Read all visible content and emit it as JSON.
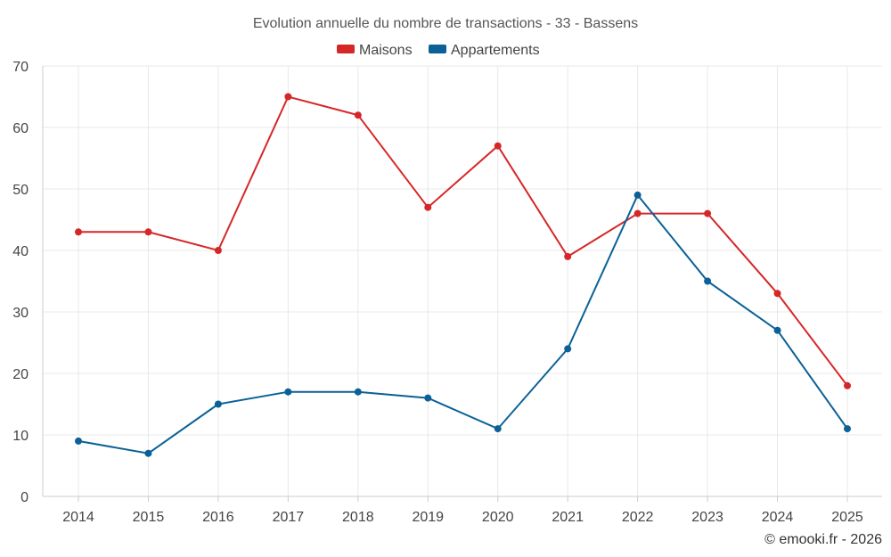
{
  "chart_data": {
    "type": "line",
    "title": "Evolution annuelle du nombre de transactions - 33 - Bassens",
    "categories": [
      "2014",
      "2015",
      "2016",
      "2017",
      "2018",
      "2019",
      "2020",
      "2021",
      "2022",
      "2023",
      "2024",
      "2025"
    ],
    "series": [
      {
        "name": "Maisons",
        "color": "#d62728",
        "values": [
          43,
          43,
          40,
          65,
          62,
          47,
          57,
          39,
          46,
          46,
          33,
          18
        ]
      },
      {
        "name": "Appartements",
        "color": "#0b6197",
        "values": [
          9,
          7,
          15,
          17,
          17,
          16,
          11,
          24,
          49,
          35,
          27,
          11
        ]
      }
    ],
    "ylim": [
      0,
      70
    ],
    "yticks": [
      0,
      10,
      20,
      30,
      40,
      50,
      60,
      70
    ],
    "grid": true,
    "legend": "top-center",
    "xlabel": "",
    "ylabel": ""
  },
  "credit": "© emooki.fr - 2026"
}
